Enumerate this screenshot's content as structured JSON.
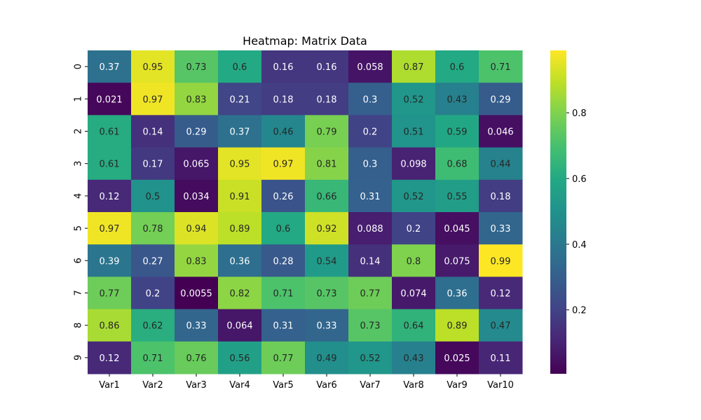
{
  "chart_data": {
    "type": "heatmap",
    "title": "Heatmap: Matrix Data",
    "xlabel": "",
    "ylabel": "",
    "columns": [
      "Var1",
      "Var2",
      "Var3",
      "Var4",
      "Var5",
      "Var6",
      "Var7",
      "Var8",
      "Var9",
      "Var10"
    ],
    "rows": [
      "0",
      "1",
      "2",
      "3",
      "4",
      "5",
      "6",
      "7",
      "8",
      "9"
    ],
    "values": [
      [
        "0.37",
        "0.95",
        "0.73",
        "0.6",
        "0.16",
        "0.16",
        "0.058",
        "0.87",
        "0.6",
        "0.71"
      ],
      [
        "0.021",
        "0.97",
        "0.83",
        "0.21",
        "0.18",
        "0.18",
        "0.3",
        "0.52",
        "0.43",
        "0.29"
      ],
      [
        "0.61",
        "0.14",
        "0.29",
        "0.37",
        "0.46",
        "0.79",
        "0.2",
        "0.51",
        "0.59",
        "0.046"
      ],
      [
        "0.61",
        "0.17",
        "0.065",
        "0.95",
        "0.97",
        "0.81",
        "0.3",
        "0.098",
        "0.68",
        "0.44"
      ],
      [
        "0.12",
        "0.5",
        "0.034",
        "0.91",
        "0.26",
        "0.66",
        "0.31",
        "0.52",
        "0.55",
        "0.18"
      ],
      [
        "0.97",
        "0.78",
        "0.94",
        "0.89",
        "0.6",
        "0.92",
        "0.088",
        "0.2",
        "0.045",
        "0.33"
      ],
      [
        "0.39",
        "0.27",
        "0.83",
        "0.36",
        "0.28",
        "0.54",
        "0.14",
        "0.8",
        "0.075",
        "0.99"
      ],
      [
        "0.77",
        "0.2",
        "0.0055",
        "0.82",
        "0.71",
        "0.73",
        "0.77",
        "0.074",
        "0.36",
        "0.12"
      ],
      [
        "0.86",
        "0.62",
        "0.33",
        "0.064",
        "0.31",
        "0.33",
        "0.73",
        "0.64",
        "0.89",
        "0.47"
      ],
      [
        "0.12",
        "0.71",
        "0.76",
        "0.56",
        "0.77",
        "0.49",
        "0.52",
        "0.43",
        "0.025",
        "0.11"
      ]
    ],
    "colormap": "viridis",
    "color_range": [
      0.0055,
      0.99
    ],
    "colorbar_ticks": [
      "0.2",
      "0.4",
      "0.6",
      "0.8"
    ],
    "colorbar_tick_values": [
      0.2,
      0.4,
      0.6,
      0.8
    ],
    "grid": false,
    "annotations": true
  }
}
